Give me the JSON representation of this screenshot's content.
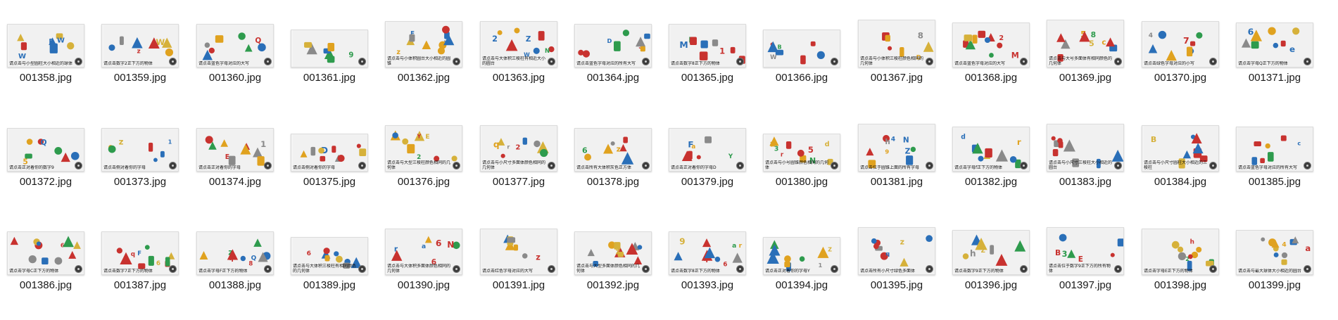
{
  "window": {
    "title": ""
  },
  "files": [
    {
      "name": "001358.jpg",
      "caption": "请点击与小型圆柱大小相近的球体"
    },
    {
      "name": "001359.jpg",
      "caption": "请点击数字2正下方的物体"
    },
    {
      "name": "001360.jpg",
      "caption": "请点击蓝色字母对应的大写"
    },
    {
      "name": "001361.jpg",
      "caption": ""
    },
    {
      "name": "001362.jpg",
      "caption": "请点击与小体积圆台大小相近的圆锥"
    },
    {
      "name": "001363.jpg",
      "caption": "请点击与大体积三棱柱有相近大小的圆台"
    },
    {
      "name": "001364.jpg",
      "caption": "请点击蓝色字母对应的所有大写"
    },
    {
      "name": "001365.jpg",
      "caption": "请点击数字8正下方的物体"
    },
    {
      "name": "001366.jpg",
      "caption": ""
    },
    {
      "name": "001367.jpg",
      "caption": "请点击与小体积三棱柱颜色相同的几何体"
    },
    {
      "name": "001368.jpg",
      "caption": "请点击蓝色字母对应的大写"
    },
    {
      "name": "001369.jpg",
      "caption": "请点击与大号多面体有相同颜色的几何体"
    },
    {
      "name": "001370.jpg",
      "caption": "请点击绿色字母对应的小写"
    },
    {
      "name": "001371.jpg",
      "caption": "请点击字母Q正下方的物体"
    },
    {
      "name": "001372.jpg",
      "caption": "请点击正对着你的数字9"
    },
    {
      "name": "001373.jpg",
      "caption": "请点击侧对着你的字母"
    },
    {
      "name": "001374.jpg",
      "caption": "请点击正对着你的字母"
    },
    {
      "name": "001375.jpg",
      "caption": "请点击侧对着你的字母"
    },
    {
      "name": "001376.jpg",
      "caption": "请点击与大型三棱柱颜色相同的几何体"
    },
    {
      "name": "001377.jpg",
      "caption": "请点击与小尺寸多面体颜色相同的几何体"
    },
    {
      "name": "001378.jpg",
      "caption": "请点击所有大体积灰色正方体"
    },
    {
      "name": "001379.jpg",
      "caption": "请点击正对着你的字母D"
    },
    {
      "name": "001380.jpg",
      "caption": "请点击与小号圆锥颜色相同的几何体"
    },
    {
      "name": "001381.jpg",
      "caption": "请点击位于圆锥上面的所有字母"
    },
    {
      "name": "001382.jpg",
      "caption": "请点击字母f正下方的物体"
    },
    {
      "name": "001383.jpg",
      "caption": "请点击与小尺寸三棱柱大小相近的圆台"
    },
    {
      "name": "001384.jpg",
      "caption": "请点击与小尺寸圆柱大小相近的三棱柱"
    },
    {
      "name": "001385.jpg",
      "caption": "请点击蓝色字母对应的所有大写"
    },
    {
      "name": "001386.jpg",
      "caption": "请点击字母C正下方的物体"
    },
    {
      "name": "001387.jpg",
      "caption": "请点击数字7正下方的物体"
    },
    {
      "name": "001388.jpg",
      "caption": "请点击字母F正下方的物体"
    },
    {
      "name": "001389.jpg",
      "caption": "请点击与大体积三棱柱有相同颜色的几何体"
    },
    {
      "name": "001390.jpg",
      "caption": "请点击与大体积多面体颜色相同的几何体"
    },
    {
      "name": "001391.jpg",
      "caption": "请点击红色字母对应的大写"
    },
    {
      "name": "001392.jpg",
      "caption": "请点击与大型多面体颜色相同的几何体"
    },
    {
      "name": "001393.jpg",
      "caption": "请点击数字8正下方的物体"
    },
    {
      "name": "001394.jpg",
      "caption": "请点击正对着你的字母Y"
    },
    {
      "name": "001395.jpg",
      "caption": "请点击所有小尺寸绿色多面体"
    },
    {
      "name": "001396.jpg",
      "caption": "请点击数字9正下方的物体"
    },
    {
      "name": "001397.jpg",
      "caption": "请点击位于数字9正下方的所有物体"
    },
    {
      "name": "001398.jpg",
      "caption": "请点击字母E正下方的物体"
    },
    {
      "name": "001399.jpg",
      "caption": "请点击与最大球体大小相近的圆台"
    }
  ]
}
